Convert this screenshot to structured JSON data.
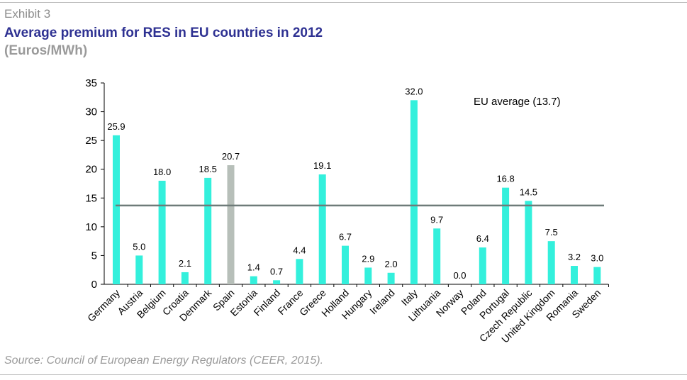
{
  "header": {
    "exhibit": "Exhibit 3",
    "title": "Average premium for RES in EU countries in 2012",
    "unit": "(Euros/MWh)"
  },
  "footer": {
    "source": "Source: Council of European Energy Regulators (CEER, 2015)."
  },
  "chart_data": {
    "type": "bar",
    "title": "Average premium for RES in EU countries in 2012",
    "ylabel": "(Euros/MWh)",
    "xlabel": "",
    "ylim": [
      0,
      35
    ],
    "yticks": [
      0,
      5,
      10,
      15,
      20,
      25,
      30,
      35
    ],
    "grid": false,
    "categories": [
      "Germany",
      "Austria",
      "Belgium",
      "Croatia",
      "Denmark",
      "Spain",
      "Estonia",
      "Finland",
      "France",
      "Greece",
      "Holland",
      "Hungary",
      "Ireland",
      "Italy",
      "Lithuania",
      "Norway",
      "Poland",
      "Portugal",
      "Czech Republic",
      "United Kingdom",
      "Romania",
      "Sweden"
    ],
    "values": [
      25.9,
      5.0,
      18.0,
      2.1,
      18.5,
      20.7,
      1.4,
      0.7,
      4.4,
      19.1,
      6.7,
      2.9,
      2.0,
      32.0,
      9.7,
      0.0,
      6.4,
      16.8,
      14.5,
      7.5,
      3.2,
      3.0
    ],
    "value_labels": [
      "25.9",
      "5.0",
      "18.0",
      "2.1",
      "18.5",
      "20.7",
      "1.4",
      "0.7",
      "4.4",
      "19.1",
      "6.7",
      "2.9",
      "2.0",
      "32.0",
      "9.7",
      "0.0",
      "6.4",
      "16.8",
      "14.5",
      "7.5",
      "3.2",
      "3.0"
    ],
    "highlight_category": "Spain",
    "bar_color": "#33f0dc",
    "highlight_color": "#b7bfb9",
    "reference_line": {
      "label": "EU average (13.7)",
      "value": 13.7,
      "color": "#6e7b79"
    }
  }
}
